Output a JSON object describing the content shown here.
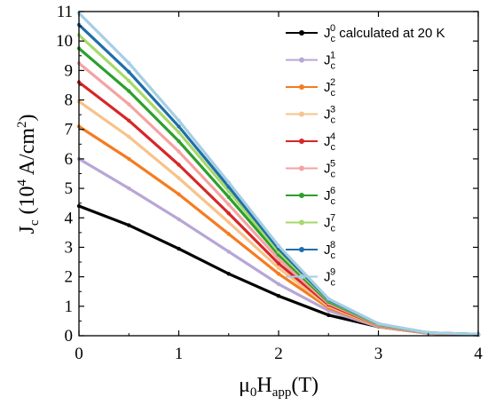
{
  "chart_data": {
    "type": "line",
    "xlabel_parts": {
      "mu": "μ",
      "sub0": "0",
      "H": "H",
      "sub_app": "app",
      "unit": "(T)"
    },
    "ylabel_parts": {
      "J": "J",
      "sub_c": "c",
      "pre": " (10",
      "sup4": "4",
      "mid": " A/cm",
      "sup2": "2",
      "post": ")"
    },
    "xlim": [
      0,
      4
    ],
    "ylim": [
      0,
      11
    ],
    "x_ticks": [
      "0",
      "1",
      "2",
      "3",
      "4"
    ],
    "y_ticks": [
      "0",
      "1",
      "2",
      "3",
      "4",
      "5",
      "6",
      "7",
      "8",
      "9",
      "10",
      "11"
    ],
    "legend_position": "top-right",
    "grid": false,
    "series": [
      {
        "name_base": "J",
        "name_sub": "c",
        "name_sup": "0",
        "name_suffix": " calculated at 20 K",
        "color": "#000000",
        "points": [
          [
            0,
            4.4
          ],
          [
            0.5,
            3.75
          ],
          [
            1,
            2.95
          ],
          [
            1.5,
            2.1
          ],
          [
            2,
            1.35
          ],
          [
            2.5,
            0.7
          ],
          [
            3,
            0.3
          ],
          [
            3.5,
            0.08
          ],
          [
            4,
            0.03
          ]
        ]
      },
      {
        "name_base": "J",
        "name_sub": "c",
        "name_sup": "1",
        "name_suffix": "",
        "color": "#b8a6d6",
        "points": [
          [
            0,
            6.0
          ],
          [
            0.5,
            5.0
          ],
          [
            1,
            3.95
          ],
          [
            1.5,
            2.85
          ],
          [
            2,
            1.75
          ],
          [
            2.5,
            0.85
          ],
          [
            3,
            0.3
          ],
          [
            3.5,
            0.08
          ],
          [
            4,
            0.04
          ]
        ]
      },
      {
        "name_base": "J",
        "name_sub": "c",
        "name_sup": "2",
        "name_suffix": "",
        "color": "#f47c20",
        "points": [
          [
            0,
            7.1
          ],
          [
            0.5,
            6.0
          ],
          [
            1,
            4.8
          ],
          [
            1.5,
            3.45
          ],
          [
            2,
            2.1
          ],
          [
            2.5,
            0.95
          ],
          [
            3,
            0.32
          ],
          [
            3.5,
            0.08
          ],
          [
            4,
            0.04
          ]
        ]
      },
      {
        "name_base": "J",
        "name_sub": "c",
        "name_sup": "3",
        "name_suffix": "",
        "color": "#f7c38a",
        "points": [
          [
            0,
            7.95
          ],
          [
            0.5,
            6.75
          ],
          [
            1,
            5.35
          ],
          [
            1.5,
            3.85
          ],
          [
            2,
            2.3
          ],
          [
            2.5,
            1.0
          ],
          [
            3,
            0.33
          ],
          [
            3.5,
            0.08
          ],
          [
            4,
            0.04
          ]
        ]
      },
      {
        "name_base": "J",
        "name_sub": "c",
        "name_sup": "4",
        "name_suffix": "",
        "color": "#d62728",
        "points": [
          [
            0,
            8.6
          ],
          [
            0.5,
            7.3
          ],
          [
            1,
            5.8
          ],
          [
            1.5,
            4.15
          ],
          [
            2,
            2.45
          ],
          [
            2.5,
            1.05
          ],
          [
            3,
            0.35
          ],
          [
            3.5,
            0.09
          ],
          [
            4,
            0.04
          ]
        ]
      },
      {
        "name_base": "J",
        "name_sub": "c",
        "name_sup": "5",
        "name_suffix": "",
        "color": "#f4a3a3",
        "points": [
          [
            0,
            9.25
          ],
          [
            0.5,
            7.85
          ],
          [
            1,
            6.25
          ],
          [
            1.5,
            4.45
          ],
          [
            2,
            2.6
          ],
          [
            2.5,
            1.1
          ],
          [
            3,
            0.36
          ],
          [
            3.5,
            0.09
          ],
          [
            4,
            0.05
          ]
        ]
      },
      {
        "name_base": "J",
        "name_sub": "c",
        "name_sup": "6",
        "name_suffix": "",
        "color": "#2ca02c",
        "points": [
          [
            0,
            9.75
          ],
          [
            0.5,
            8.3
          ],
          [
            1,
            6.6
          ],
          [
            1.5,
            4.7
          ],
          [
            2,
            2.75
          ],
          [
            2.5,
            1.15
          ],
          [
            3,
            0.38
          ],
          [
            3.5,
            0.1
          ],
          [
            4,
            0.05
          ]
        ]
      },
      {
        "name_base": "J",
        "name_sub": "c",
        "name_sup": "7",
        "name_suffix": "",
        "color": "#a6d96a",
        "points": [
          [
            0,
            10.2
          ],
          [
            0.5,
            8.65
          ],
          [
            1,
            6.9
          ],
          [
            1.5,
            4.9
          ],
          [
            2,
            2.85
          ],
          [
            2.5,
            1.2
          ],
          [
            3,
            0.39
          ],
          [
            3.5,
            0.1
          ],
          [
            4,
            0.05
          ]
        ]
      },
      {
        "name_base": "J",
        "name_sub": "c",
        "name_sup": "8",
        "name_suffix": "",
        "color": "#1f6ea8",
        "points": [
          [
            0,
            10.55
          ],
          [
            0.5,
            8.95
          ],
          [
            1,
            7.1
          ],
          [
            1.5,
            5.05
          ],
          [
            2,
            2.95
          ],
          [
            2.5,
            1.22
          ],
          [
            3,
            0.4
          ],
          [
            3.5,
            0.1
          ],
          [
            4,
            0.05
          ]
        ]
      },
      {
        "name_base": "J",
        "name_sub": "c",
        "name_sup": "9",
        "name_suffix": "",
        "color": "#a6cee3",
        "points": [
          [
            0,
            10.95
          ],
          [
            0.5,
            9.25
          ],
          [
            1,
            7.3
          ],
          [
            1.5,
            5.2
          ],
          [
            2,
            3.05
          ],
          [
            2.5,
            1.25
          ],
          [
            3,
            0.41
          ],
          [
            3.5,
            0.1
          ],
          [
            4,
            0.05
          ]
        ]
      }
    ]
  }
}
